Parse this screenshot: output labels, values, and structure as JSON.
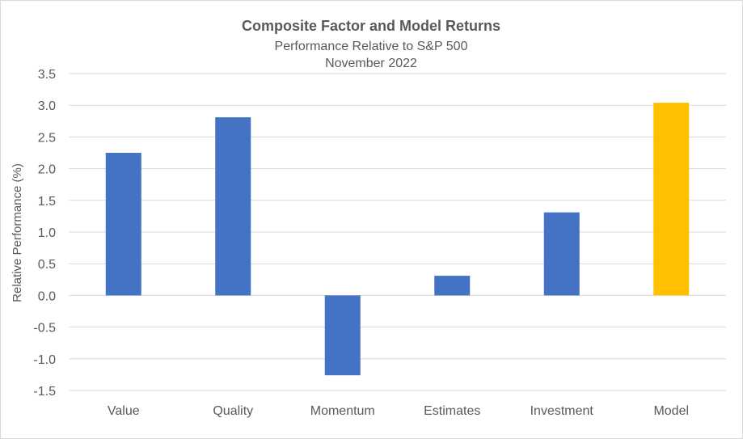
{
  "chart_data": {
    "type": "bar",
    "title": "Composite Factor and Model Returns",
    "subtitle": [
      "Performance Relative to S&P 500",
      "November 2022"
    ],
    "xlabel": "",
    "ylabel": "Relative Performance (%)",
    "categories": [
      "Value",
      "Quality",
      "Momentum",
      "Estimates",
      "Investment",
      "Model"
    ],
    "values": [
      2.25,
      2.81,
      -1.26,
      0.31,
      1.31,
      3.04
    ],
    "ylim": [
      -1.5,
      3.5
    ],
    "yticks": [
      "3.5",
      "3.0",
      "2.5",
      "2.0",
      "1.5",
      "1.0",
      "0.5",
      "0.0",
      "-0.5",
      "-1.0",
      "-1.5"
    ],
    "grid": true,
    "legend": "none",
    "colors": {
      "bar": "#4472C4",
      "highlight": "#FFC000",
      "highlight_category": "Model",
      "grid": "#d9d9d9",
      "text": "#595959"
    }
  }
}
